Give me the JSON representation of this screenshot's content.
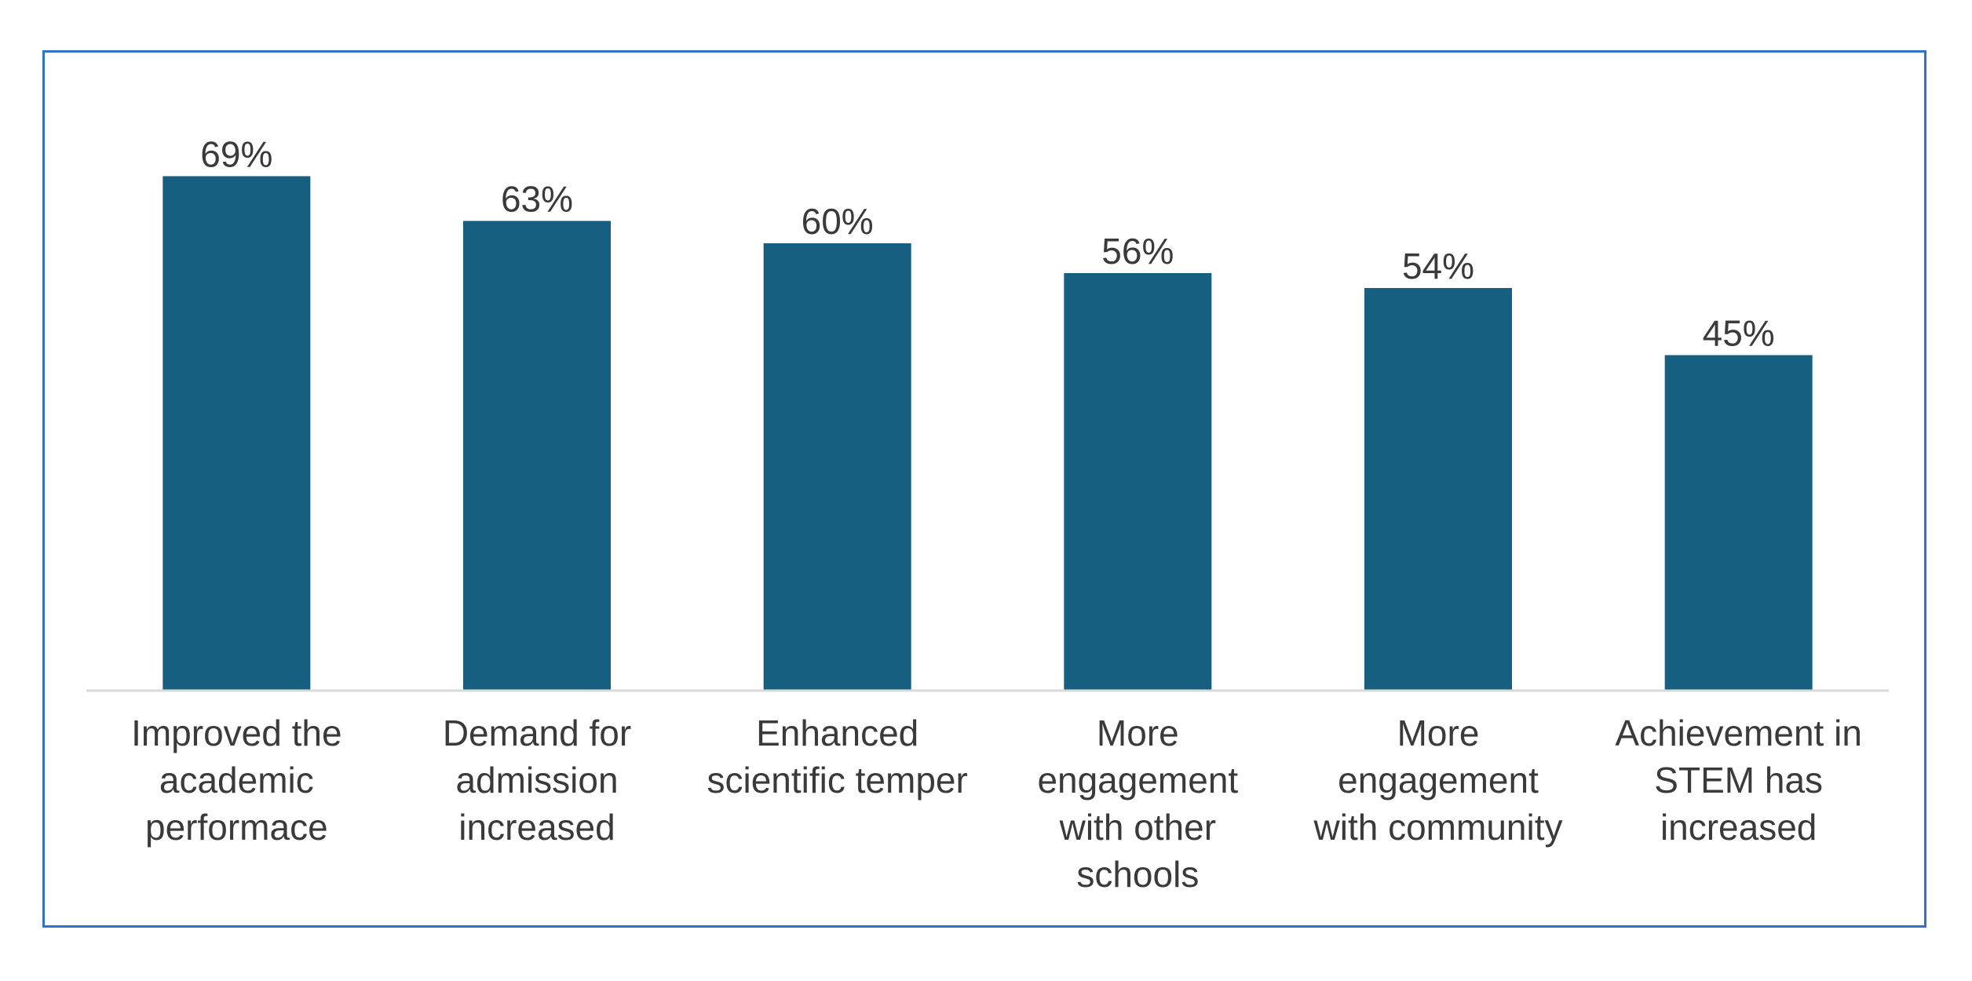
{
  "chart_data": {
    "type": "bar",
    "title": "",
    "xlabel": "",
    "ylabel": "",
    "ylim": [
      0,
      75
    ],
    "grid": false,
    "legend": "none",
    "categories": [
      "Improved the academic performace",
      "Demand for admission increased",
      "Enhanced scientific temper",
      "More engagement with other schools",
      "More engagement with community",
      "Achievement in STEM has increased"
    ],
    "category_label_lines": [
      [
        "Improved the",
        "academic",
        "performace"
      ],
      [
        "Demand for",
        "admission",
        "increased"
      ],
      [
        "Enhanced",
        "scientific temper"
      ],
      [
        "More",
        "engagement",
        "with other",
        "schools"
      ],
      [
        "More",
        "engagement",
        "with community"
      ],
      [
        "Achievement in",
        "STEM has",
        "increased"
      ]
    ],
    "values": [
      69,
      63,
      60,
      56,
      54,
      45
    ],
    "value_labels": [
      "69%",
      "63%",
      "60%",
      "56%",
      "54%",
      "45%"
    ],
    "colors": {
      "bar": "#175f80",
      "axis": "#d9d9d9",
      "frame": "#2f72c9",
      "text": "#3a3a3a"
    }
  }
}
